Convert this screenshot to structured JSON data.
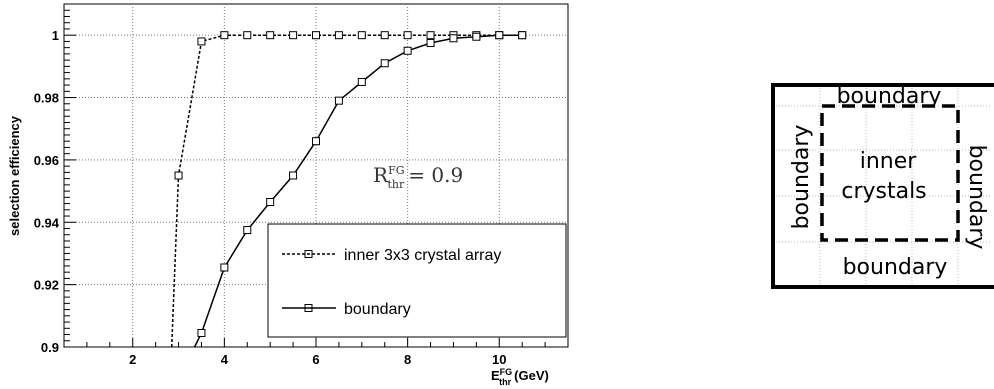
{
  "chart_data": {
    "type": "line",
    "xlabel_main": "E",
    "xlabel_sup": "FG",
    "xlabel_sub": "thr",
    "xlabel_unit": "(GeV)",
    "ylabel": "selection efficiency",
    "xlim": [
      0.5,
      11.5
    ],
    "ylim": [
      0.9,
      1.01
    ],
    "xticks": [
      2,
      4,
      6,
      8,
      10
    ],
    "xtick_labels": [
      "2",
      "4",
      "6",
      "8",
      "10"
    ],
    "yticks": [
      0.9,
      0.92,
      0.94,
      0.96,
      0.98,
      1.0
    ],
    "ytick_labels": [
      "0.9",
      "0.92",
      "0.94",
      "0.96",
      "0.98",
      "1"
    ],
    "grid": true,
    "legend_position": "bottom-right",
    "annotation": {
      "main": "R",
      "sup": "FG",
      "sub": "thr",
      "rest": "= 0.9"
    },
    "series": [
      {
        "name": "inner 3x3 crystal array",
        "style": "dashed",
        "color": "#000000",
        "x": [
          2.85,
          3.0,
          3.5,
          4.0,
          4.5,
          5.0,
          5.5,
          6.0,
          6.5,
          7.0,
          7.5,
          8.0,
          8.5,
          9.0,
          9.5,
          10.0,
          10.5
        ],
        "y": [
          0.9,
          0.955,
          0.998,
          1.0,
          1.0,
          1.0,
          1.0,
          1.0,
          1.0,
          1.0,
          1.0,
          1.0,
          1.0,
          1.0,
          1.0,
          1.0,
          1.0
        ],
        "markers": [
          false,
          true,
          true,
          true,
          true,
          true,
          true,
          true,
          true,
          true,
          true,
          true,
          true,
          true,
          true,
          true,
          true
        ]
      },
      {
        "name": "boundary",
        "style": "solid",
        "color": "#000000",
        "x": [
          3.35,
          3.5,
          4.0,
          4.5,
          5.0,
          5.5,
          6.0,
          6.5,
          7.0,
          7.5,
          8.0,
          8.5,
          9.0,
          9.5,
          10.0,
          10.5
        ],
        "y": [
          0.9,
          0.9045,
          0.9255,
          0.9375,
          0.9465,
          0.955,
          0.966,
          0.979,
          0.985,
          0.991,
          0.995,
          0.9975,
          0.999,
          0.9995,
          1.0,
          1.0
        ],
        "markers": [
          false,
          true,
          true,
          true,
          true,
          true,
          true,
          true,
          true,
          true,
          true,
          true,
          true,
          true,
          true,
          true
        ]
      }
    ]
  },
  "diagram": {
    "top_label": "boundary",
    "bottom_label": "boundary",
    "left_label": "boundary",
    "right_label": "boundary",
    "inner_line1": "inner",
    "inner_line2": "crystals"
  }
}
